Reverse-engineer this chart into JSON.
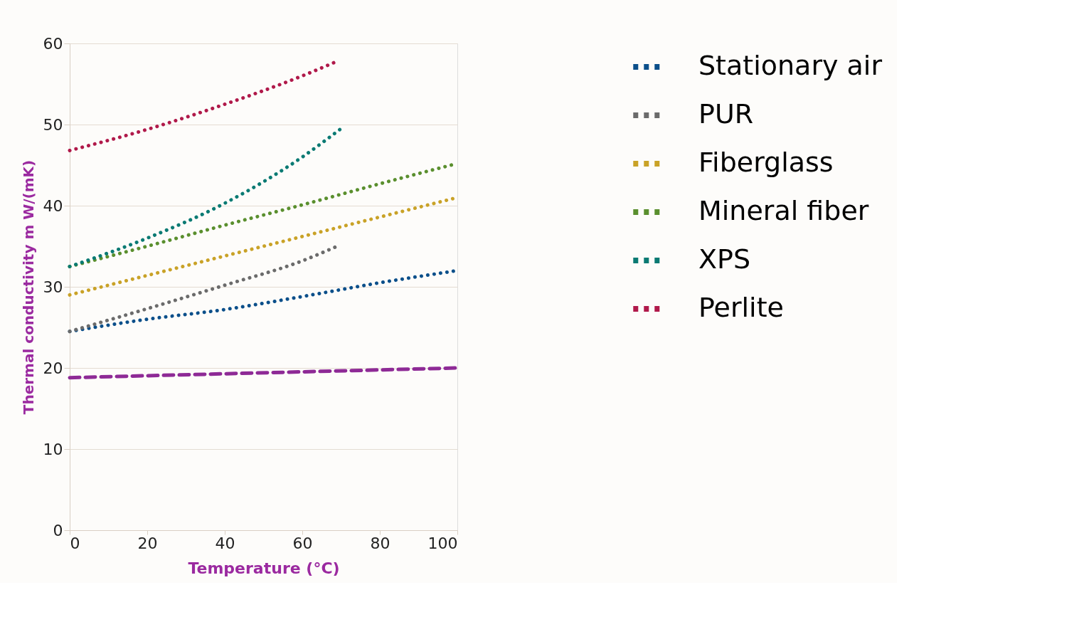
{
  "chart_data": {
    "type": "line",
    "xlabel": "Temperature (°C)",
    "ylabel": "Thermal conductivity m W/(mK)",
    "xlim": [
      0,
      100
    ],
    "xticks": [
      0,
      20,
      40,
      60,
      80,
      100
    ],
    "ylim": [
      0,
      60
    ],
    "yticks": [
      0,
      10,
      20,
      30,
      40,
      50,
      60
    ],
    "grid": "y",
    "legend": "right",
    "line_style": "dotted",
    "marker": "none",
    "series": [
      {
        "name": "Stationary air",
        "color": "#0b4f8a",
        "x": [
          0,
          20,
          40,
          60,
          80,
          100
        ],
        "values": [
          24.5,
          26.0,
          27.2,
          28.8,
          30.5,
          32.0
        ]
      },
      {
        "name": "PUR",
        "color": "#6b6b6b",
        "x": [
          0,
          20,
          40,
          60,
          69
        ],
        "values": [
          24.5,
          27.3,
          30.2,
          33.2,
          35.0
        ]
      },
      {
        "name": "Fiberglass",
        "color": "#c9a227",
        "x": [
          0,
          20,
          40,
          60,
          80,
          100
        ],
        "values": [
          29.0,
          31.4,
          33.8,
          36.2,
          38.6,
          41.0
        ]
      },
      {
        "name": "Mineral fiber",
        "color": "#5a8f2e",
        "x": [
          0,
          20,
          40,
          60,
          80,
          100
        ],
        "values": [
          32.5,
          35.0,
          37.6,
          40.1,
          42.7,
          45.2
        ]
      },
      {
        "name": "XPS",
        "color": "#0a7a73",
        "x": [
          0,
          20,
          40,
          60,
          70
        ],
        "values": [
          32.5,
          36.0,
          40.3,
          46.0,
          49.5
        ]
      },
      {
        "name": "Perlite",
        "color": "#b0194a",
        "x": [
          0,
          20,
          40,
          60,
          69
        ],
        "values": [
          46.8,
          49.4,
          52.5,
          56.0,
          57.8
        ]
      },
      {
        "color": "#8e2a96",
        "line_style": "dashed",
        "x": [
          0,
          100
        ],
        "values": [
          18.8,
          20.0
        ]
      }
    ]
  }
}
